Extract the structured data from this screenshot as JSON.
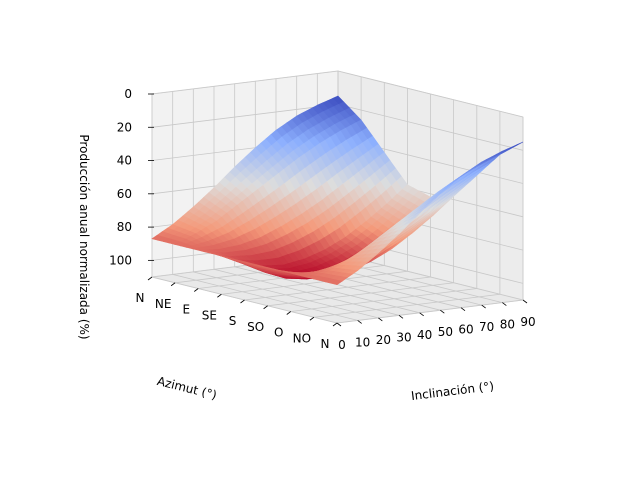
{
  "chart_data": {
    "type": "surface3d",
    "title": "",
    "xlabel": "Inclinación (°)",
    "ylabel": "Azimut (°)",
    "zlabel": "Producción anual normalizada (%)",
    "x_ticks": [
      "0",
      "10",
      "20",
      "30",
      "40",
      "50",
      "60",
      "70",
      "80",
      "90"
    ],
    "y_ticks": [
      "N",
      "NE",
      "E",
      "SE",
      "S",
      "SO",
      "O",
      "NO",
      "N"
    ],
    "z_ticks": [
      "0",
      "20",
      "40",
      "60",
      "80",
      "100"
    ],
    "xlim": [
      0,
      90
    ],
    "zlim": [
      0,
      110
    ],
    "z_axis_inverted": true,
    "colormap": "coolwarm",
    "grid": true,
    "surface": {
      "inclination": [
        0,
        10,
        20,
        30,
        40,
        50,
        60,
        70,
        80,
        90
      ],
      "azimuth": [
        "N",
        "NE",
        "E",
        "SE",
        "S",
        "SO",
        "O",
        "NO",
        "N"
      ],
      "values": [
        [
          87,
          80,
          71,
          61,
          50,
          40,
          31,
          24,
          19,
          15
        ],
        [
          87,
          82,
          76,
          68,
          60,
          52,
          44,
          37,
          31,
          26
        ],
        [
          87,
          88,
          87,
          84,
          79,
          73,
          66,
          58,
          50,
          42
        ],
        [
          87,
          93,
          96,
          97,
          95,
          91,
          85,
          77,
          68,
          58
        ],
        [
          87,
          95,
          100,
          102,
          101,
          97,
          91,
          83,
          73,
          62
        ],
        [
          87,
          93,
          96,
          97,
          95,
          91,
          85,
          77,
          68,
          58
        ],
        [
          87,
          88,
          87,
          84,
          79,
          73,
          66,
          58,
          50,
          42
        ],
        [
          87,
          82,
          76,
          68,
          60,
          52,
          44,
          37,
          31,
          26
        ],
        [
          87,
          80,
          71,
          61,
          50,
          40,
          31,
          24,
          19,
          15
        ]
      ]
    }
  }
}
